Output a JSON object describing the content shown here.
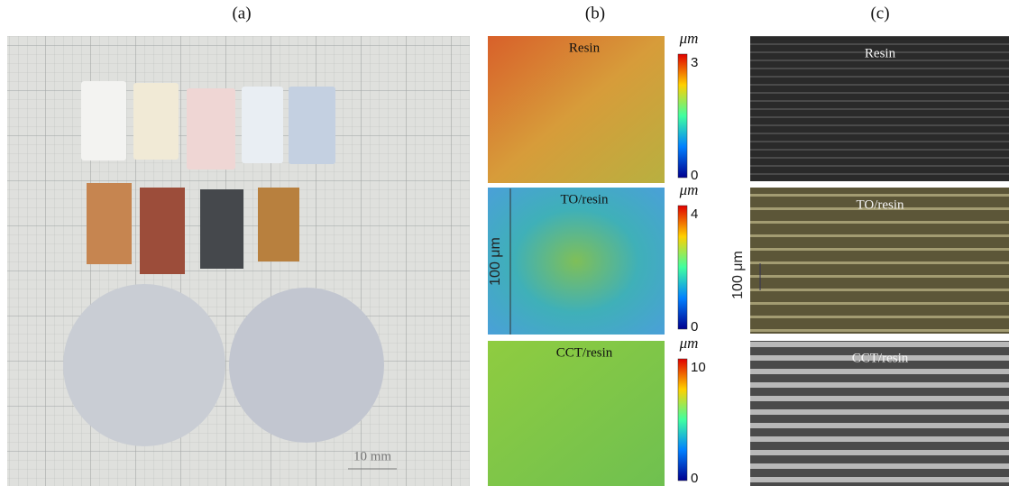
{
  "panel_a": {
    "label": "(a)",
    "scale_bar": "10 mm"
  },
  "panel_b": {
    "label": "(b)",
    "scale_label": "100 μm",
    "maps": [
      {
        "title": "Resin",
        "unit": "μm",
        "max": 3,
        "min": 0
      },
      {
        "title": "TO/resin",
        "unit": "μm",
        "max": 4,
        "min": 0
      },
      {
        "title": "CCT/resin",
        "unit": "μm",
        "max": 10,
        "min": 0
      }
    ]
  },
  "panel_c": {
    "label": "(c)",
    "scale_label": "100 μm",
    "images": [
      {
        "title": "Resin"
      },
      {
        "title": "TO/resin"
      },
      {
        "title": "CCT/resin"
      }
    ]
  }
}
